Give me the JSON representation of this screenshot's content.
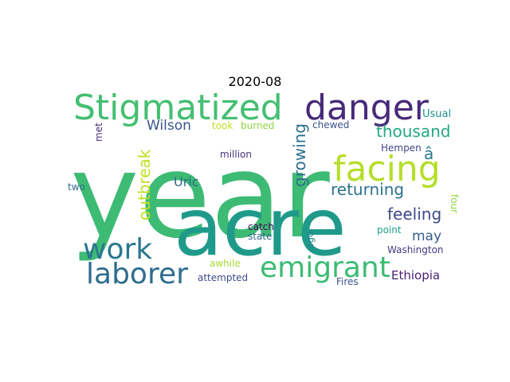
{
  "figure": {
    "title": "2020-08"
  },
  "word_cloud": {
    "words": [
      {
        "text": "year",
        "color": "#3dbb74"
      },
      {
        "text": "acre",
        "color": "#1f9a8a"
      },
      {
        "text": "Stigmatized",
        "color": "#43bf71"
      },
      {
        "text": "danger",
        "color": "#482979"
      },
      {
        "text": "facing",
        "color": "#b5de2b"
      },
      {
        "text": "work",
        "color": "#2a788e"
      },
      {
        "text": "laborer",
        "color": "#2e6d8e"
      },
      {
        "text": "emigrant",
        "color": "#3bbb75"
      },
      {
        "text": "Wilson",
        "color": "#3b528b"
      },
      {
        "text": "outbreak",
        "color": "#c2df23"
      },
      {
        "text": "growing",
        "color": "#2e6f8e"
      },
      {
        "text": "thousand",
        "color": "#22a785"
      },
      {
        "text": "returning",
        "color": "#2c728e"
      },
      {
        "text": "feeling",
        "color": "#3e4989"
      },
      {
        "text": "may",
        "color": "#365d8d"
      },
      {
        "text": "Ethiopia",
        "color": "#482173"
      },
      {
        "text": "Uric",
        "color": "#31688e"
      },
      {
        "text": "â",
        "color": "#2a788e"
      },
      {
        "text": "Usual",
        "color": "#21908d"
      },
      {
        "text": "took",
        "color": "#bddf26"
      },
      {
        "text": "burned",
        "color": "#8fd744"
      },
      {
        "text": "chewed",
        "color": "#3b528b"
      },
      {
        "text": "Hempen",
        "color": "#414487"
      },
      {
        "text": "met",
        "color": "#472c7a"
      },
      {
        "text": "million",
        "color": "#46327e"
      },
      {
        "text": "two",
        "color": "#31688e"
      },
      {
        "text": "four",
        "color": "#8fd744"
      },
      {
        "text": "catch",
        "color": "#440154"
      },
      {
        "text": "state",
        "color": "#31688e"
      },
      {
        "text": "ago",
        "color": "#25848e"
      },
      {
        "text": "point",
        "color": "#1f9e89"
      },
      {
        "text": "Washington",
        "color": "#443983"
      },
      {
        "text": "awhile",
        "color": "#a8db34"
      },
      {
        "text": "attempted",
        "color": "#3e4989"
      },
      {
        "text": "Fires",
        "color": "#3b528b"
      }
    ]
  }
}
